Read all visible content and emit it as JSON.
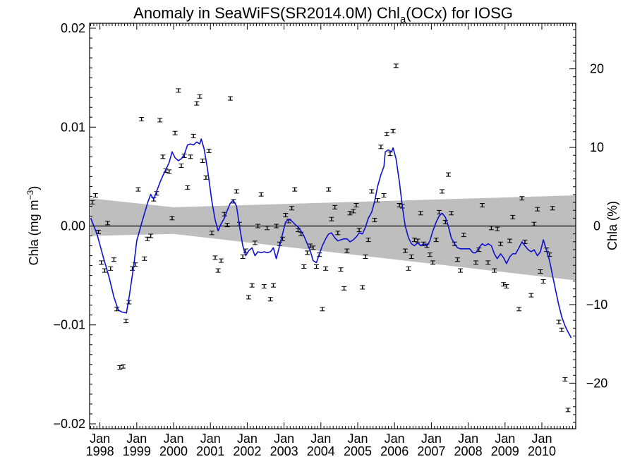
{
  "chart_data": {
    "type": "scatter",
    "title": "Anomaly in SeaWiFS(SR2014.0M) Chl",
    "title_subscript": "a",
    "title_suffix": "(OCx) for IOSG",
    "ylabel_left": "Chla (mg m",
    "ylabel_left_superscript": "−3",
    "ylabel_left_suffix": ")",
    "ylabel_right": "Chla (%)",
    "x_range": [
      1997.72,
      2010.92
    ],
    "ylim_left": [
      -0.0205,
      0.0205
    ],
    "ylim_right": [
      -25.8,
      25.8
    ],
    "x_ticks": [
      {
        "x": 1998.0,
        "month": "Jan",
        "year": "1998"
      },
      {
        "x": 1999.0,
        "month": "Jan",
        "year": "1999"
      },
      {
        "x": 2000.0,
        "month": "Jan",
        "year": "2000"
      },
      {
        "x": 2001.0,
        "month": "Jan",
        "year": "2001"
      },
      {
        "x": 2002.0,
        "month": "Jan",
        "year": "2002"
      },
      {
        "x": 2003.0,
        "month": "Jan",
        "year": "2003"
      },
      {
        "x": 2004.0,
        "month": "Jan",
        "year": "2004"
      },
      {
        "x": 2005.0,
        "month": "Jan",
        "year": "2005"
      },
      {
        "x": 2006.0,
        "month": "Jan",
        "year": "2006"
      },
      {
        "x": 2007.0,
        "month": "Jan",
        "year": "2007"
      },
      {
        "x": 2008.0,
        "month": "Jan",
        "year": "2008"
      },
      {
        "x": 2009.0,
        "month": "Jan",
        "year": "2009"
      },
      {
        "x": 2010.0,
        "month": "Jan",
        "year": "2010"
      }
    ],
    "y_ticks_left": [
      {
        "v": 0.02,
        "label": "0.02"
      },
      {
        "v": 0.01,
        "label": "0.01"
      },
      {
        "v": 0.0,
        "label": "0.00"
      },
      {
        "v": -0.01,
        "label": "−0.01"
      },
      {
        "v": -0.02,
        "label": "−0.02"
      }
    ],
    "y_ticks_right": [
      {
        "v": 20,
        "label": "20"
      },
      {
        "v": 10,
        "label": "10"
      },
      {
        "v": 0,
        "label": "0"
      },
      {
        "v": -10,
        "label": "−10"
      },
      {
        "v": -20,
        "label": "−20"
      }
    ],
    "zero_line": true,
    "confidence_band": {
      "x": [
        1997.75,
        2000.0,
        2010.92
      ],
      "upper": [
        0.0028,
        0.0019,
        0.0031
      ],
      "lower": [
        -0.001,
        -0.0008,
        -0.0055
      ],
      "color": "#bebebe"
    },
    "points": [
      [
        1997.79,
        0.0024
      ],
      [
        1997.88,
        0.0031
      ],
      [
        1997.96,
        -0.0006
      ],
      [
        1998.04,
        -0.0037
      ],
      [
        1998.13,
        -0.0045
      ],
      [
        1998.21,
        0.0003
      ],
      [
        1998.29,
        -0.0043
      ],
      [
        1998.38,
        -0.0034
      ],
      [
        1998.46,
        -0.0084
      ],
      [
        1998.54,
        -0.0143
      ],
      [
        1998.63,
        -0.0142
      ],
      [
        1998.71,
        -0.0096
      ],
      [
        1998.79,
        -0.0077
      ],
      [
        1998.88,
        -0.0043
      ],
      [
        1998.96,
        -0.0039
      ],
      [
        1999.04,
        0.0037
      ],
      [
        1999.13,
        0.0108
      ],
      [
        1999.21,
        -0.0033
      ],
      [
        1999.29,
        -0.0013
      ],
      [
        1999.38,
        -0.001
      ],
      [
        1999.46,
        0.0027
      ],
      [
        1999.54,
        0.0033
      ],
      [
        1999.63,
        0.0107
      ],
      [
        1999.71,
        0.007
      ],
      [
        1999.79,
        0.0056
      ],
      [
        1999.88,
        0.0055
      ],
      [
        1999.96,
        0.0008
      ],
      [
        2000.04,
        0.0094
      ],
      [
        2000.13,
        0.0137
      ],
      [
        2000.21,
        0.0061
      ],
      [
        2000.29,
        0.0071
      ],
      [
        2000.38,
        0.0039
      ],
      [
        2000.46,
        0.007
      ],
      [
        2000.54,
        0.0091
      ],
      [
        2000.63,
        0.0124
      ],
      [
        2000.71,
        0.0131
      ],
      [
        2000.79,
        0.0066
      ],
      [
        2000.88,
        0.0049
      ],
      [
        2000.96,
        0.0076
      ],
      [
        2001.04,
        -0.0007
      ],
      [
        2001.13,
        -0.0032
      ],
      [
        2001.21,
        -0.0045
      ],
      [
        2001.29,
        -0.0035
      ],
      [
        2001.38,
        0.0012
      ],
      [
        2001.46,
        0.0001
      ],
      [
        2001.54,
        0.0129
      ],
      [
        2001.63,
        0.0025
      ],
      [
        2001.71,
        0.0035
      ],
      [
        2001.79,
        0.0002
      ],
      [
        2001.88,
        -0.0031
      ],
      [
        2001.96,
        -0.0025
      ],
      [
        2002.04,
        -0.0072
      ],
      [
        2002.13,
        -0.006
      ],
      [
        2002.21,
        -0.0017
      ],
      [
        2002.29,
        0.0
      ],
      [
        2002.38,
        0.0032
      ],
      [
        2002.46,
        -0.0061
      ],
      [
        2002.54,
        -0.0002
      ],
      [
        2002.63,
        -0.0074
      ],
      [
        2002.71,
        -0.006
      ],
      [
        2002.79,
        0.0
      ],
      [
        2002.88,
        -0.0018
      ],
      [
        2002.96,
        -0.0013
      ],
      [
        2003.04,
        0.0011
      ],
      [
        2003.13,
        0.0005
      ],
      [
        2003.21,
        0.0018
      ],
      [
        2003.29,
        0.0037
      ],
      [
        2003.38,
        -0.0004
      ],
      [
        2003.46,
        -0.0008
      ],
      [
        2003.54,
        -0.0041
      ],
      [
        2003.63,
        -0.0027
      ],
      [
        2003.71,
        -0.002
      ],
      [
        2003.79,
        -0.0022
      ],
      [
        2003.88,
        -0.0041
      ],
      [
        2003.96,
        -0.0029
      ],
      [
        2004.04,
        -0.0084
      ],
      [
        2004.13,
        -0.0043
      ],
      [
        2004.21,
        0.0037
      ],
      [
        2004.29,
        0.0007
      ],
      [
        2004.38,
        0.0019
      ],
      [
        2004.46,
        -0.0007
      ],
      [
        2004.54,
        -0.0044
      ],
      [
        2004.63,
        -0.0063
      ],
      [
        2004.71,
        -0.0025
      ],
      [
        2004.79,
        0.0013
      ],
      [
        2004.88,
        0.0015
      ],
      [
        2004.96,
        0.0021
      ],
      [
        2005.04,
        -0.0004
      ],
      [
        2005.13,
        -0.0062
      ],
      [
        2005.21,
        -0.0031
      ],
      [
        2005.29,
        -0.0014
      ],
      [
        2005.38,
        0.0035
      ],
      [
        2005.46,
        0.0006
      ],
      [
        2005.54,
        0.0026
      ],
      [
        2005.63,
        0.008
      ],
      [
        2005.71,
        0.0031
      ],
      [
        2005.79,
        0.0093
      ],
      [
        2005.88,
        0.0073
      ],
      [
        2005.96,
        0.0096
      ],
      [
        2006.04,
        0.0162
      ],
      [
        2006.13,
        0.0021
      ],
      [
        2006.21,
        0.002
      ],
      [
        2006.29,
        -0.0025
      ],
      [
        2006.38,
        -0.0043
      ],
      [
        2006.46,
        -0.0031
      ],
      [
        2006.54,
        -0.0014
      ],
      [
        2006.63,
        -0.0015
      ],
      [
        2006.71,
        0.0013
      ],
      [
        2006.79,
        -0.0018
      ],
      [
        2006.88,
        -0.002
      ],
      [
        2006.96,
        -0.0029
      ],
      [
        2007.04,
        -0.0037
      ],
      [
        2007.13,
        -0.0014
      ],
      [
        2007.21,
        0.0014
      ],
      [
        2007.29,
        0.0035
      ],
      [
        2007.38,
        0.0004
      ],
      [
        2007.46,
        0.0052
      ],
      [
        2007.54,
        0.0013
      ],
      [
        2007.63,
        -0.0018
      ],
      [
        2007.71,
        -0.0034
      ],
      [
        2007.79,
        -0.0045
      ],
      [
        2007.88,
        -0.0009
      ],
      [
        2008.21,
        -0.0037
      ],
      [
        2008.29,
        -0.0024
      ],
      [
        2008.38,
        0.0021
      ],
      [
        2008.54,
        -0.0037
      ],
      [
        2008.63,
        -0.0002
      ],
      [
        2008.71,
        -0.0045
      ],
      [
        2008.79,
        -0.0003
      ],
      [
        2008.88,
        -0.0018
      ],
      [
        2008.96,
        -0.0059
      ],
      [
        2009.04,
        -0.0061
      ],
      [
        2009.13,
        -0.0015
      ],
      [
        2009.21,
        0.0009
      ],
      [
        2009.38,
        -0.0084
      ],
      [
        2009.46,
        0.0028
      ],
      [
        2009.54,
        -0.0016
      ],
      [
        2009.71,
        -0.007
      ],
      [
        2009.79,
        0.0002
      ],
      [
        2009.88,
        0.0017
      ],
      [
        2009.96,
        -0.0046
      ],
      [
        2010.04,
        -0.0056
      ],
      [
        2010.13,
        -0.0024
      ],
      [
        2010.21,
        -0.0029
      ],
      [
        2010.29,
        0.0018
      ],
      [
        2010.46,
        -0.0097
      ],
      [
        2010.54,
        -0.0105
      ],
      [
        2010.63,
        -0.0155
      ],
      [
        2010.71,
        -0.0186
      ]
    ],
    "smooth_line": {
      "color": "#1010d0",
      "points": [
        [
          1997.75,
          0.0008
        ],
        [
          1997.92,
          -0.0008
        ],
        [
          1998.08,
          -0.003
        ],
        [
          1998.25,
          -0.0052
        ],
        [
          1998.38,
          -0.0072
        ],
        [
          1998.5,
          -0.0085
        ],
        [
          1998.6,
          -0.0087
        ],
        [
          1998.72,
          -0.0088
        ],
        [
          1998.8,
          -0.007
        ],
        [
          1998.92,
          -0.004
        ],
        [
          1999.0,
          -0.0015
        ],
        [
          1999.15,
          0.0005
        ],
        [
          1999.3,
          0.0024
        ],
        [
          1999.38,
          0.0032
        ],
        [
          1999.46,
          0.0027
        ],
        [
          1999.55,
          0.0036
        ],
        [
          1999.63,
          0.0044
        ],
        [
          1999.71,
          0.0051
        ],
        [
          1999.79,
          0.0057
        ],
        [
          1999.88,
          0.0064
        ],
        [
          1999.96,
          0.0075
        ],
        [
          2000.04,
          0.0069
        ],
        [
          2000.13,
          0.0066
        ],
        [
          2000.21,
          0.0068
        ],
        [
          2000.29,
          0.0072
        ],
        [
          2000.38,
          0.0082
        ],
        [
          2000.46,
          0.0083
        ],
        [
          2000.54,
          0.0082
        ],
        [
          2000.63,
          0.0085
        ],
        [
          2000.71,
          0.0083
        ],
        [
          2000.75,
          0.0088
        ],
        [
          2000.83,
          0.0078
        ],
        [
          2000.92,
          0.0058
        ],
        [
          2001.04,
          0.0025
        ],
        [
          2001.13,
          0.0006
        ],
        [
          2001.21,
          -0.0005
        ],
        [
          2001.29,
          0.0002
        ],
        [
          2001.38,
          0.0008
        ],
        [
          2001.46,
          0.0016
        ],
        [
          2001.54,
          0.0023
        ],
        [
          2001.62,
          0.0026
        ],
        [
          2001.71,
          0.002
        ],
        [
          2001.79,
          0.0
        ],
        [
          2001.88,
          -0.002
        ],
        [
          2001.96,
          -0.003
        ],
        [
          2002.04,
          -0.0025
        ],
        [
          2002.13,
          -0.0022
        ],
        [
          2002.21,
          -0.003
        ],
        [
          2002.29,
          -0.0026
        ],
        [
          2002.38,
          -0.0027
        ],
        [
          2002.46,
          -0.0026
        ],
        [
          2002.54,
          -0.0027
        ],
        [
          2002.63,
          -0.0026
        ],
        [
          2002.71,
          -0.0022
        ],
        [
          2002.79,
          -0.0033
        ],
        [
          2002.88,
          -0.002
        ],
        [
          2002.96,
          -0.0008
        ],
        [
          2003.04,
          0.0004
        ],
        [
          2003.13,
          0.0007
        ],
        [
          2003.21,
          0.0005
        ],
        [
          2003.29,
          0.0002
        ],
        [
          2003.38,
          -0.0001
        ],
        [
          2003.46,
          -0.0005
        ],
        [
          2003.54,
          -0.001
        ],
        [
          2003.63,
          -0.0018
        ],
        [
          2003.71,
          -0.0025
        ],
        [
          2003.79,
          -0.0035
        ],
        [
          2003.88,
          -0.0037
        ],
        [
          2003.96,
          -0.0028
        ],
        [
          2004.04,
          -0.002
        ],
        [
          2004.13,
          -0.0013
        ],
        [
          2004.21,
          -0.0008
        ],
        [
          2004.29,
          -0.0007
        ],
        [
          2004.38,
          -0.0012
        ],
        [
          2004.46,
          -0.0015
        ],
        [
          2004.54,
          -0.0014
        ],
        [
          2004.63,
          -0.0013
        ],
        [
          2004.71,
          -0.0013
        ],
        [
          2004.79,
          -0.0016
        ],
        [
          2004.88,
          -0.0014
        ],
        [
          2004.96,
          -0.0011
        ],
        [
          2005.04,
          -0.0007
        ],
        [
          2005.13,
          -0.0008
        ],
        [
          2005.21,
          -0.0001
        ],
        [
          2005.29,
          0.0008
        ],
        [
          2005.38,
          0.0014
        ],
        [
          2005.46,
          0.0025
        ],
        [
          2005.54,
          0.004
        ],
        [
          2005.63,
          0.0052
        ],
        [
          2005.71,
          0.006
        ],
        [
          2005.75,
          0.0075
        ],
        [
          2005.83,
          0.0077
        ],
        [
          2005.92,
          0.0075
        ],
        [
          2005.96,
          0.0079
        ],
        [
          2006.04,
          0.0068
        ],
        [
          2006.13,
          0.0045
        ],
        [
          2006.21,
          0.002
        ],
        [
          2006.29,
          0.0
        ],
        [
          2006.38,
          -0.0012
        ],
        [
          2006.46,
          -0.0018
        ],
        [
          2006.54,
          -0.002
        ],
        [
          2006.63,
          -0.0017
        ],
        [
          2006.71,
          -0.002
        ],
        [
          2006.79,
          -0.0018
        ],
        [
          2006.88,
          -0.002
        ],
        [
          2006.96,
          -0.0015
        ],
        [
          2007.04,
          -0.0005
        ],
        [
          2007.13,
          0.0004
        ],
        [
          2007.21,
          0.001
        ],
        [
          2007.29,
          0.0013
        ],
        [
          2007.38,
          0.0009
        ],
        [
          2007.46,
          0.0
        ],
        [
          2007.54,
          -0.0012
        ],
        [
          2007.63,
          -0.0018
        ],
        [
          2007.71,
          -0.0022
        ],
        [
          2007.79,
          -0.0023
        ],
        [
          2007.88,
          -0.0023
        ],
        [
          2007.96,
          -0.0023
        ],
        [
          2008.04,
          -0.0023
        ],
        [
          2008.13,
          -0.0027
        ],
        [
          2008.21,
          -0.0027
        ],
        [
          2008.29,
          -0.0022
        ],
        [
          2008.38,
          -0.0018
        ],
        [
          2008.46,
          -0.002
        ],
        [
          2008.54,
          -0.0018
        ],
        [
          2008.63,
          -0.002
        ],
        [
          2008.71,
          -0.0028
        ],
        [
          2008.79,
          -0.0033
        ],
        [
          2008.88,
          -0.0028
        ],
        [
          2008.96,
          -0.0032
        ],
        [
          2009.04,
          -0.0038
        ],
        [
          2009.13,
          -0.0031
        ],
        [
          2009.21,
          -0.0028
        ],
        [
          2009.29,
          -0.0028
        ],
        [
          2009.38,
          -0.0022
        ],
        [
          2009.46,
          -0.0016
        ],
        [
          2009.54,
          -0.002
        ],
        [
          2009.63,
          -0.0024
        ],
        [
          2009.71,
          -0.0026
        ],
        [
          2009.79,
          -0.0024
        ],
        [
          2009.88,
          -0.003
        ],
        [
          2009.96,
          -0.0026
        ],
        [
          2010.04,
          -0.0014
        ],
        [
          2010.13,
          -0.0025
        ],
        [
          2010.21,
          -0.0035
        ],
        [
          2010.29,
          -0.005
        ],
        [
          2010.38,
          -0.0066
        ],
        [
          2010.46,
          -0.008
        ],
        [
          2010.54,
          -0.0092
        ],
        [
          2010.63,
          -0.0101
        ],
        [
          2010.71,
          -0.0107
        ],
        [
          2010.8,
          -0.0113
        ]
      ]
    }
  }
}
